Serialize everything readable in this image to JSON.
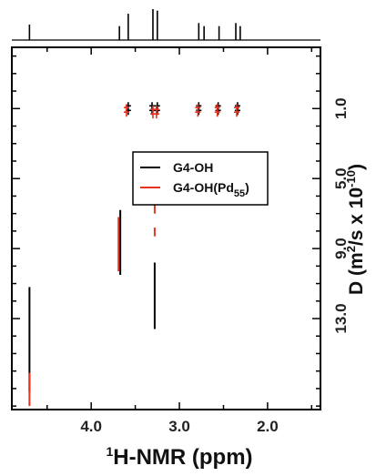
{
  "chart_data": {
    "type": "scatter",
    "subtype": "2D DOSY NMR spectrum",
    "x_axis": {
      "label_sup": "1",
      "label_main": "H-NMR (ppm)",
      "reversed": true,
      "range": [
        4.9,
        1.4
      ],
      "ticks": [
        4.0,
        3.0,
        2.0
      ],
      "tick_labels": [
        "4.0",
        "3.0",
        "2.0"
      ]
    },
    "y_axis": {
      "label_main": "D (m",
      "label_sup": "2",
      "label_rest": "/s x 10",
      "label_sup2": "-10",
      "label_end": ")",
      "position": "right",
      "reversed": true,
      "range": [
        -2.5,
        18.2
      ],
      "ticks": [
        1.0,
        5.0,
        9.0,
        13.0
      ],
      "tick_labels": [
        "1.0",
        "5.0",
        "9.0",
        "13.0"
      ]
    },
    "top_spectrum_peaks": [
      {
        "ppm": 4.7,
        "height": 0.5
      },
      {
        "ppm": 3.68,
        "height": 0.45
      },
      {
        "ppm": 3.58,
        "height": 0.85
      },
      {
        "ppm": 3.3,
        "height": 1.0
      },
      {
        "ppm": 3.25,
        "height": 0.95
      },
      {
        "ppm": 2.78,
        "height": 0.55
      },
      {
        "ppm": 2.72,
        "height": 0.45
      },
      {
        "ppm": 2.55,
        "height": 0.45
      },
      {
        "ppm": 2.36,
        "height": 0.55
      },
      {
        "ppm": 2.31,
        "height": 0.45
      }
    ],
    "series": [
      {
        "name": "G4-OH",
        "color": "#000000",
        "points": [
          {
            "ppm": 3.58,
            "D": 1.0
          },
          {
            "ppm": 3.31,
            "D": 1.0
          },
          {
            "ppm": 3.25,
            "D": 1.0
          },
          {
            "ppm": 2.78,
            "D": 1.0
          },
          {
            "ppm": 2.56,
            "D": 1.0
          },
          {
            "ppm": 2.34,
            "D": 1.0
          }
        ],
        "segments": [
          {
            "ppm": 4.7,
            "D_from": 11.2,
            "D_to": 17.2
          },
          {
            "ppm": 3.67,
            "D_from": 6.8,
            "D_to": 10.5
          },
          {
            "ppm": 3.28,
            "D_from": 9.8,
            "D_to": 13.6
          }
        ]
      },
      {
        "name": "G4-OH(Pd",
        "name_sub": "55",
        "name_end": ")",
        "color": "#e8311e",
        "points": [
          {
            "ppm": 3.6,
            "D": 1.1
          },
          {
            "ppm": 3.3,
            "D": 1.2
          },
          {
            "ppm": 3.26,
            "D": 1.2
          },
          {
            "ppm": 2.79,
            "D": 1.1
          },
          {
            "ppm": 2.57,
            "D": 1.1
          },
          {
            "ppm": 2.35,
            "D": 1.1
          }
        ],
        "segments": [
          {
            "ppm": 4.7,
            "D_from": 16.1,
            "D_to": 18.0
          },
          {
            "ppm": 3.69,
            "D_from": 7.2,
            "D_to": 10.3
          },
          {
            "ppm": 3.28,
            "D_from": 6.5,
            "D_to": 7.0
          },
          {
            "ppm": 3.28,
            "D_from": 7.8,
            "D_to": 8.3
          }
        ]
      }
    ],
    "legend": "center-right"
  }
}
